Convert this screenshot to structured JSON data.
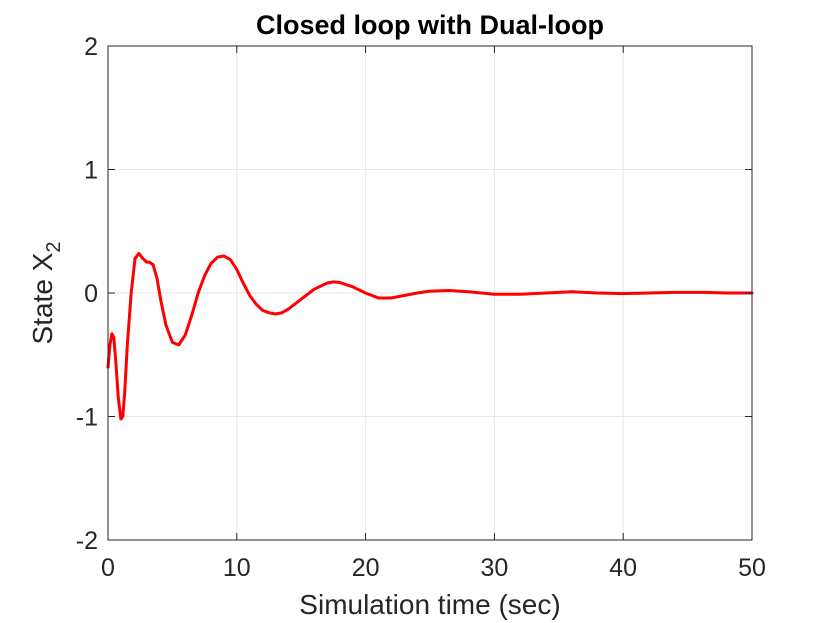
{
  "chart_data": {
    "type": "line",
    "title": "Closed loop with Dual-loop",
    "xlabel": "Simulation time (sec)",
    "ylabel_main": "State X",
    "ylabel_sub": "2",
    "xlim": [
      0,
      50
    ],
    "ylim": [
      -2,
      2
    ],
    "xticks": [
      0,
      10,
      20,
      30,
      40,
      50
    ],
    "yticks": [
      -2,
      -1,
      0,
      1,
      2
    ],
    "grid": true,
    "series": [
      {
        "color": "#ff0000",
        "x": [
          0,
          0.15,
          0.3,
          0.45,
          0.6,
          0.8,
          1.0,
          1.15,
          1.3,
          1.5,
          1.8,
          2.1,
          2.4,
          2.7,
          3.0,
          3.2,
          3.5,
          3.8,
          4.1,
          4.5,
          5.0,
          5.5,
          6.0,
          6.5,
          7.0,
          7.5,
          8.0,
          8.5,
          9.0,
          9.5,
          10.0,
          10.5,
          11.0,
          11.5,
          12.0,
          12.5,
          13.0,
          13.5,
          14.0,
          15.0,
          16.0,
          17.0,
          17.5,
          18.0,
          19.0,
          20.0,
          21.0,
          22.0,
          23.0,
          24.0,
          25.0,
          26.5,
          28.0,
          29.0,
          30.0,
          32.0,
          34.0,
          36.0,
          38.0,
          40.0,
          42.0,
          44.0,
          46.5,
          48.0,
          50.0
        ],
        "y": [
          -0.6,
          -0.42,
          -0.33,
          -0.36,
          -0.55,
          -0.85,
          -1.02,
          -1.0,
          -0.8,
          -0.42,
          0.0,
          0.28,
          0.32,
          0.28,
          0.25,
          0.25,
          0.23,
          0.12,
          -0.06,
          -0.26,
          -0.4,
          -0.42,
          -0.34,
          -0.18,
          0.0,
          0.14,
          0.24,
          0.29,
          0.3,
          0.27,
          0.19,
          0.08,
          -0.02,
          -0.09,
          -0.14,
          -0.16,
          -0.17,
          -0.16,
          -0.13,
          -0.05,
          0.03,
          0.08,
          0.09,
          0.085,
          0.05,
          0.0,
          -0.04,
          -0.04,
          -0.02,
          0.0,
          0.015,
          0.02,
          0.01,
          0.0,
          -0.01,
          -0.01,
          0.0,
          0.01,
          0.0,
          -0.005,
          0.0,
          0.005,
          0.005,
          0.0,
          0.0
        ]
      }
    ]
  }
}
